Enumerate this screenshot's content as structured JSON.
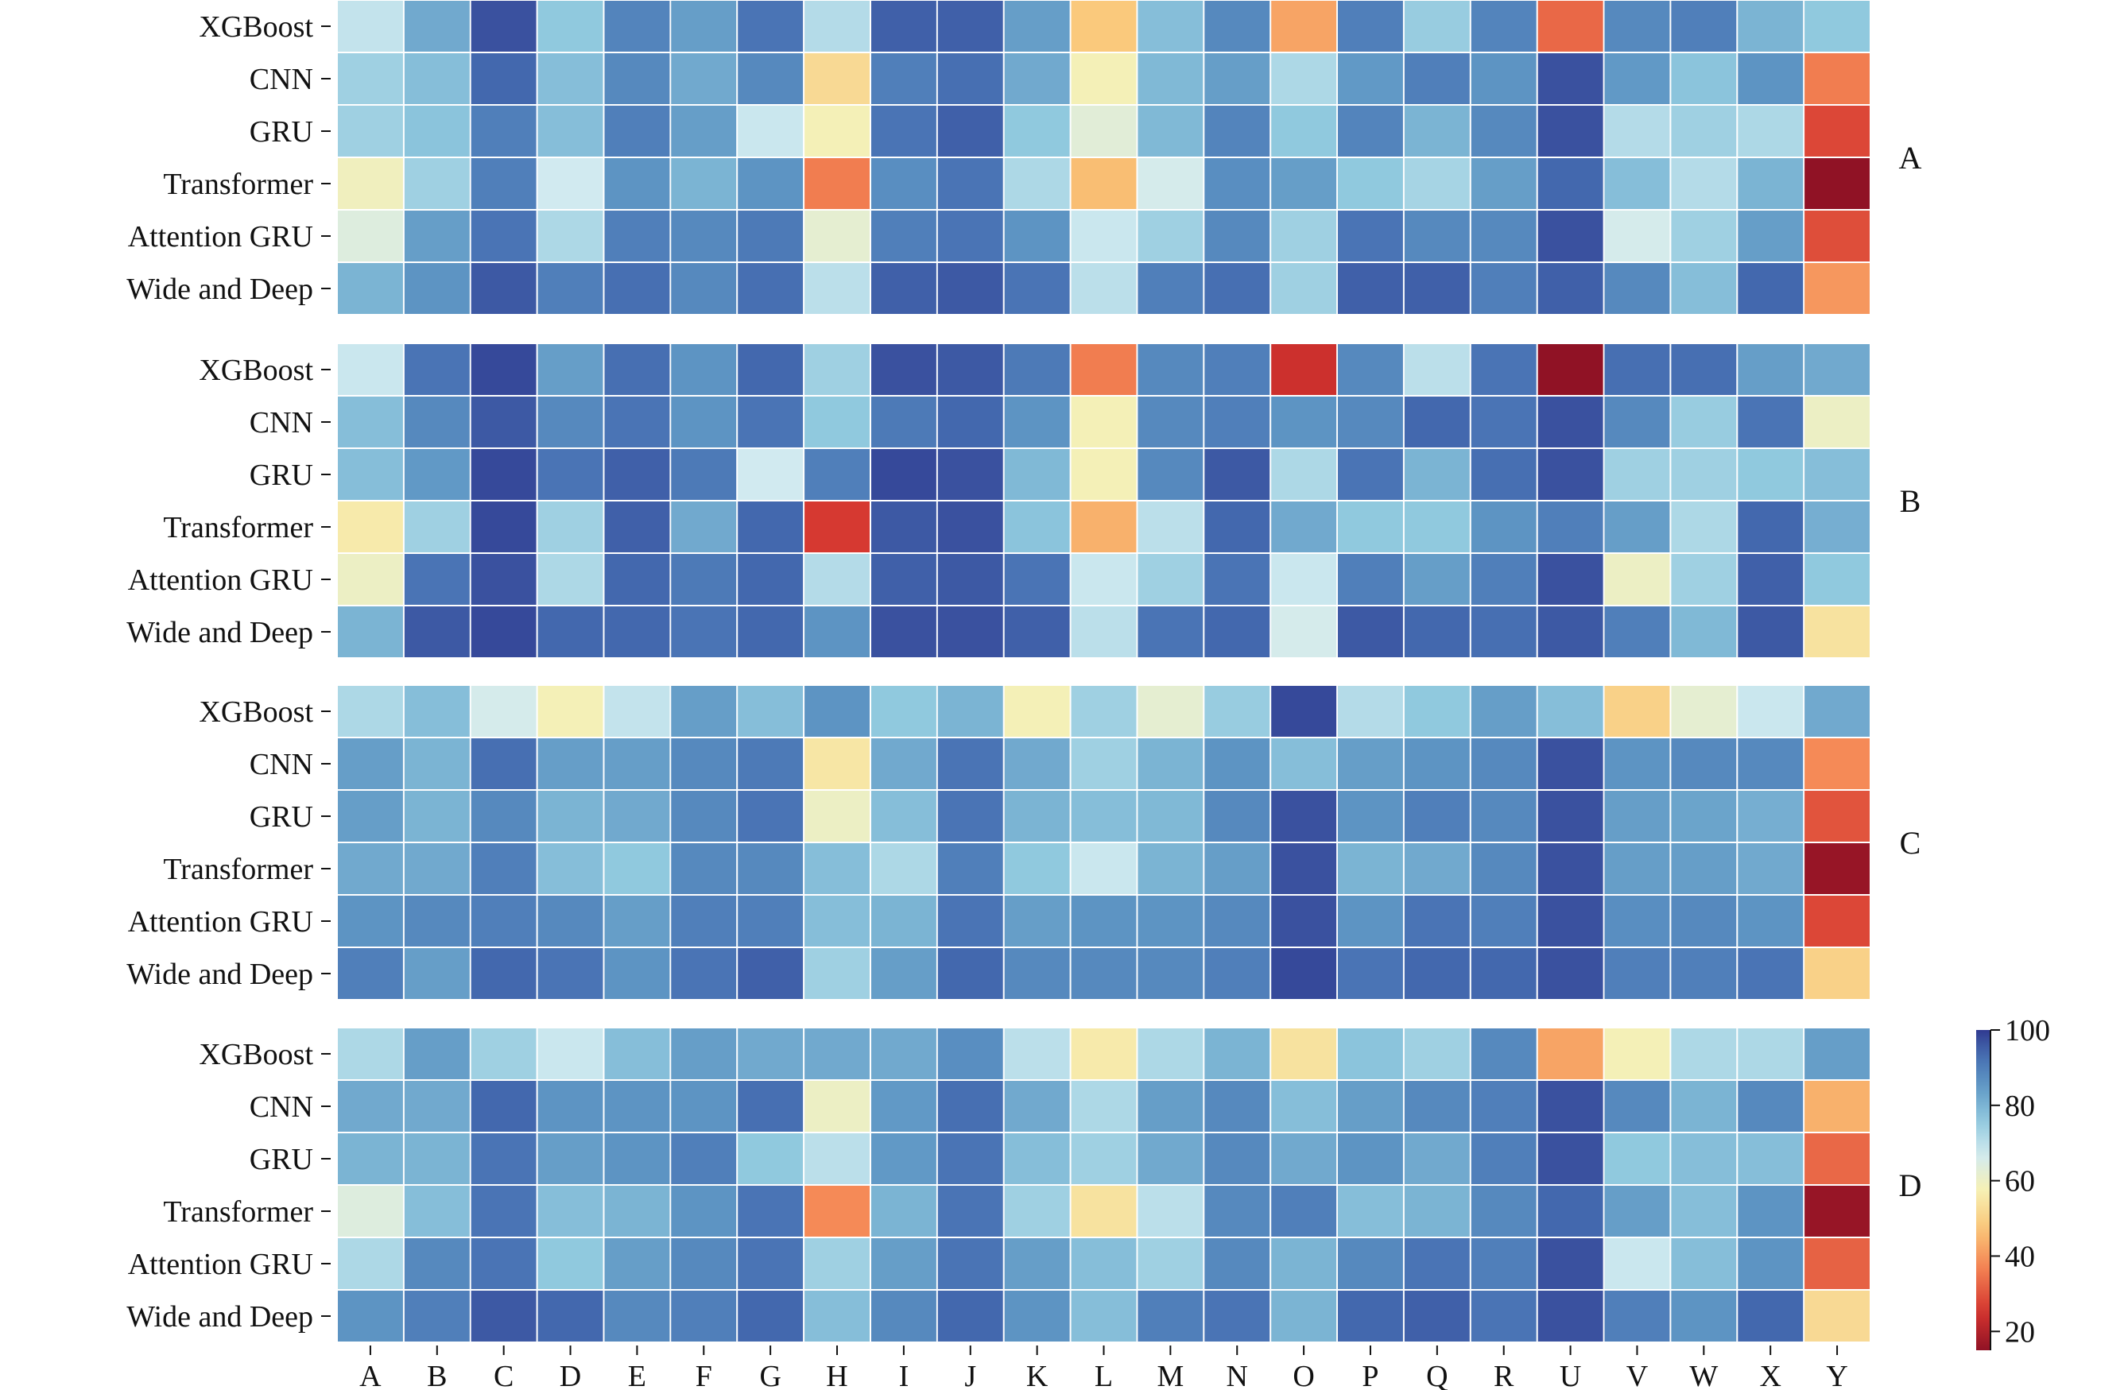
{
  "chart_data": {
    "type": "heatmap",
    "columns": [
      "A",
      "B",
      "C",
      "D",
      "E",
      "F",
      "G",
      "H",
      "I",
      "J",
      "K",
      "L",
      "M",
      "N",
      "O",
      "P",
      "Q",
      "R",
      "U",
      "V",
      "W",
      "X",
      "Y"
    ],
    "rows": [
      "XGBoost",
      "CNN",
      "GRU",
      "Transformer",
      "Attention GRU",
      "Wide and Deep"
    ],
    "panels": [
      {
        "label": "A",
        "values": [
          [
            69,
            82,
            97,
            76,
            89,
            84,
            92,
            71,
            95,
            95,
            84,
            48,
            78,
            88,
            42,
            90,
            75,
            89,
            33,
            88,
            90,
            80,
            76
          ],
          [
            74,
            78,
            94,
            78,
            88,
            82,
            88,
            52,
            90,
            93,
            82,
            58,
            79,
            84,
            72,
            85,
            90,
            86,
            97,
            85,
            77,
            86,
            36
          ],
          [
            74,
            77,
            90,
            78,
            90,
            84,
            68,
            58,
            92,
            95,
            76,
            63,
            79,
            89,
            76,
            89,
            80,
            88,
            97,
            71,
            74,
            72,
            28
          ],
          [
            59,
            74,
            90,
            67,
            86,
            80,
            86,
            36,
            87,
            92,
            72,
            46,
            66,
            87,
            84,
            76,
            73,
            84,
            94,
            78,
            71,
            80,
            14
          ],
          [
            64,
            84,
            92,
            72,
            90,
            88,
            91,
            62,
            90,
            92,
            86,
            68,
            74,
            88,
            74,
            92,
            88,
            88,
            97,
            66,
            74,
            84,
            29
          ],
          [
            80,
            86,
            96,
            90,
            93,
            88,
            93,
            70,
            95,
            96,
            92,
            70,
            90,
            93,
            74,
            95,
            95,
            90,
            95,
            88,
            78,
            94,
            40
          ]
        ]
      },
      {
        "label": "B",
        "values": [
          [
            68,
            92,
            98,
            84,
            93,
            86,
            94,
            74,
            97,
            96,
            91,
            36,
            88,
            90,
            24,
            88,
            70,
            92,
            12,
            93,
            93,
            84,
            82
          ],
          [
            78,
            88,
            96,
            88,
            92,
            86,
            92,
            76,
            91,
            94,
            86,
            58,
            88,
            90,
            86,
            88,
            94,
            92,
            97,
            88,
            75,
            92,
            60
          ],
          [
            78,
            85,
            98,
            92,
            95,
            91,
            67,
            90,
            98,
            97,
            79,
            58,
            88,
            96,
            72,
            92,
            80,
            93,
            97,
            74,
            74,
            76,
            78
          ],
          [
            56,
            74,
            98,
            74,
            95,
            82,
            94,
            26,
            96,
            97,
            77,
            44,
            70,
            94,
            82,
            76,
            76,
            86,
            90,
            84,
            72,
            94,
            81
          ],
          [
            60,
            92,
            97,
            72,
            94,
            91,
            94,
            71,
            95,
            96,
            92,
            68,
            74,
            92,
            68,
            90,
            84,
            90,
            97,
            60,
            74,
            95,
            76
          ],
          [
            80,
            96,
            98,
            94,
            94,
            92,
            94,
            86,
            97,
            97,
            95,
            70,
            92,
            94,
            66,
            96,
            94,
            93,
            96,
            90,
            79,
            96,
            54
          ]
        ]
      },
      {
        "label": "C",
        "values": [
          [
            72,
            78,
            66,
            58,
            69,
            84,
            78,
            86,
            76,
            80,
            58,
            74,
            62,
            75,
            98,
            71,
            76,
            84,
            78,
            50,
            62,
            68,
            82
          ],
          [
            84,
            80,
            93,
            84,
            84,
            88,
            91,
            55,
            82,
            92,
            82,
            74,
            80,
            86,
            78,
            84,
            86,
            88,
            97,
            86,
            88,
            88,
            38
          ],
          [
            84,
            80,
            88,
            80,
            82,
            88,
            92,
            60,
            78,
            92,
            80,
            78,
            79,
            88,
            97,
            86,
            90,
            88,
            97,
            84,
            83,
            81,
            30
          ],
          [
            82,
            82,
            90,
            78,
            76,
            88,
            88,
            78,
            72,
            90,
            76,
            68,
            80,
            84,
            97,
            80,
            82,
            88,
            97,
            84,
            84,
            82,
            16
          ],
          [
            86,
            88,
            90,
            88,
            84,
            90,
            90,
            78,
            80,
            92,
            84,
            86,
            86,
            88,
            97,
            86,
            92,
            90,
            97,
            87,
            88,
            86,
            28
          ],
          [
            90,
            84,
            94,
            92,
            86,
            92,
            95,
            74,
            84,
            94,
            88,
            88,
            88,
            90,
            98,
            92,
            94,
            94,
            97,
            90,
            90,
            92,
            50
          ]
        ]
      },
      {
        "label": "D",
        "values": [
          [
            72,
            84,
            74,
            68,
            78,
            84,
            82,
            82,
            82,
            87,
            70,
            56,
            72,
            80,
            54,
            77,
            74,
            88,
            42,
            58,
            72,
            72,
            84
          ],
          [
            82,
            82,
            94,
            86,
            86,
            86,
            93,
            60,
            85,
            93,
            82,
            72,
            84,
            88,
            78,
            84,
            88,
            90,
            97,
            88,
            80,
            88,
            44
          ],
          [
            80,
            80,
            92,
            84,
            86,
            90,
            76,
            70,
            85,
            92,
            78,
            74,
            82,
            88,
            82,
            86,
            82,
            90,
            97,
            76,
            78,
            78,
            33
          ],
          [
            64,
            78,
            92,
            78,
            80,
            86,
            92,
            38,
            80,
            92,
            74,
            54,
            70,
            88,
            90,
            78,
            80,
            88,
            94,
            84,
            78,
            86,
            16
          ],
          [
            72,
            88,
            92,
            76,
            84,
            88,
            92,
            74,
            84,
            92,
            84,
            78,
            74,
            88,
            80,
            88,
            92,
            90,
            97,
            68,
            78,
            86,
            32
          ],
          [
            86,
            90,
            96,
            94,
            88,
            90,
            94,
            78,
            88,
            94,
            86,
            78,
            90,
            92,
            80,
            94,
            95,
            92,
            97,
            90,
            86,
            94,
            52
          ]
        ]
      }
    ],
    "colorbar": {
      "min": 15,
      "max": 100,
      "ticks": [
        100,
        80,
        60,
        40,
        20
      ]
    }
  }
}
